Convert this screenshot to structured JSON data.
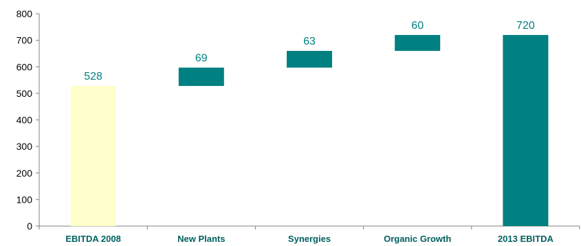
{
  "chart_data": {
    "type": "bar",
    "subtype": "waterfall",
    "categories": [
      "EBITDA 2008",
      "New Plants",
      "Synergies",
      "Organic Growth",
      "2013 EBITDA"
    ],
    "bars": [
      {
        "category": "EBITDA 2008",
        "base": 0,
        "value": 528,
        "label": "528",
        "kind": "start"
      },
      {
        "category": "New Plants",
        "base": 528,
        "value": 69,
        "label": "69",
        "kind": "delta"
      },
      {
        "category": "Synergies",
        "base": 597,
        "value": 63,
        "label": "63",
        "kind": "delta"
      },
      {
        "category": "Organic Growth",
        "base": 660,
        "value": 60,
        "label": "60",
        "kind": "delta"
      },
      {
        "category": "2013 EBITDA",
        "base": 0,
        "value": 720,
        "label": "720",
        "kind": "total"
      }
    ],
    "ylim": [
      0,
      800
    ],
    "yticks": [
      0,
      100,
      200,
      300,
      400,
      500,
      600,
      700,
      800
    ],
    "title": "",
    "xlabel": "",
    "ylabel": "",
    "grid": false,
    "legend": "none",
    "colors": {
      "start": "#ffffcc",
      "delta": "#008080",
      "total": "#008080",
      "label_text": "#008080",
      "category_text": "#006060",
      "axis": "#808080"
    }
  }
}
